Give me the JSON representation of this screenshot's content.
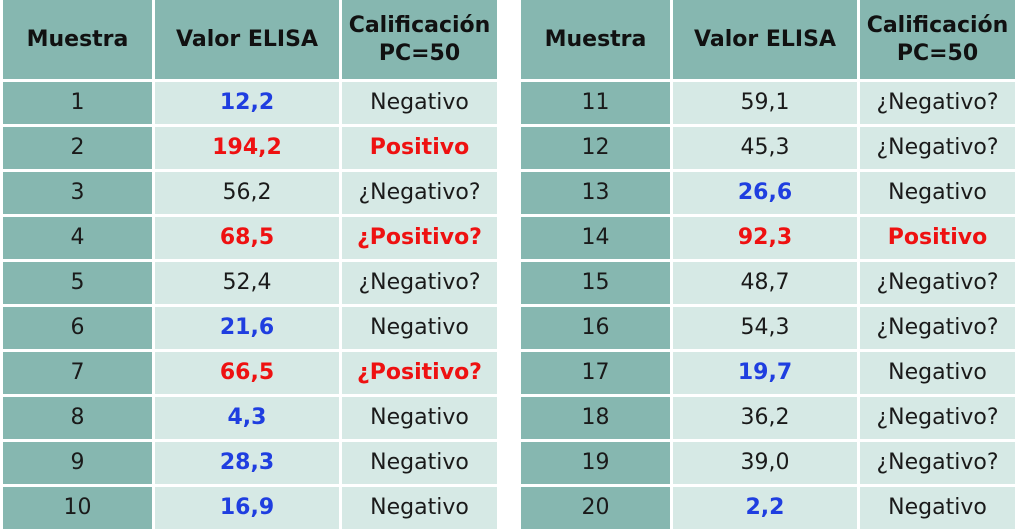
{
  "headers": {
    "sample": "Muestra",
    "value": "Valor ELISA",
    "rating_line1": "Calificación",
    "rating_line2": "PC=50"
  },
  "colors": {
    "header_bg": "#86b7b0",
    "cell_bg": "#d6e9e5",
    "negative_blue": "#1f3ee0",
    "positive_red": "#ee1111"
  },
  "left_rows": [
    {
      "sample": "1",
      "value": "12,2",
      "rating": "Negativo",
      "value_style": "neg",
      "rating_style": "plain"
    },
    {
      "sample": "2",
      "value": "194,2",
      "rating": "Positivo",
      "value_style": "pos",
      "rating_style": "pos"
    },
    {
      "sample": "3",
      "value": "56,2",
      "rating": "¿Negativo?",
      "value_style": "plain",
      "rating_style": "plain"
    },
    {
      "sample": "4",
      "value": "68,5",
      "rating": "¿Positivo?",
      "value_style": "pos",
      "rating_style": "pos"
    },
    {
      "sample": "5",
      "value": "52,4",
      "rating": "¿Negativo?",
      "value_style": "plain",
      "rating_style": "plain"
    },
    {
      "sample": "6",
      "value": "21,6",
      "rating": "Negativo",
      "value_style": "neg",
      "rating_style": "plain"
    },
    {
      "sample": "7",
      "value": "66,5",
      "rating": "¿Positivo?",
      "value_style": "pos",
      "rating_style": "pos"
    },
    {
      "sample": "8",
      "value": "4,3",
      "rating": "Negativo",
      "value_style": "neg",
      "rating_style": "plain"
    },
    {
      "sample": "9",
      "value": "28,3",
      "rating": "Negativo",
      "value_style": "neg",
      "rating_style": "plain"
    },
    {
      "sample": "10",
      "value": "16,9",
      "rating": "Negativo",
      "value_style": "neg",
      "rating_style": "plain"
    }
  ],
  "right_rows": [
    {
      "sample": "11",
      "value": "59,1",
      "rating": "¿Negativo?",
      "value_style": "plain",
      "rating_style": "plain"
    },
    {
      "sample": "12",
      "value": "45,3",
      "rating": "¿Negativo?",
      "value_style": "plain",
      "rating_style": "plain"
    },
    {
      "sample": "13",
      "value": "26,6",
      "rating": "Negativo",
      "value_style": "neg",
      "rating_style": "plain"
    },
    {
      "sample": "14",
      "value": "92,3",
      "rating": "Positivo",
      "value_style": "pos",
      "rating_style": "pos"
    },
    {
      "sample": "15",
      "value": "48,7",
      "rating": "¿Negativo?",
      "value_style": "plain",
      "rating_style": "plain"
    },
    {
      "sample": "16",
      "value": "54,3",
      "rating": "¿Negativo?",
      "value_style": "plain",
      "rating_style": "plain"
    },
    {
      "sample": "17",
      "value": "19,7",
      "rating": "Negativo",
      "value_style": "neg",
      "rating_style": "plain"
    },
    {
      "sample": "18",
      "value": "36,2",
      "rating": "¿Negativo?",
      "value_style": "plain",
      "rating_style": "plain"
    },
    {
      "sample": "19",
      "value": "39,0",
      "rating": "¿Negativo?",
      "value_style": "plain",
      "rating_style": "plain"
    },
    {
      "sample": "20",
      "value": "2,2",
      "rating": "Negativo",
      "value_style": "neg",
      "rating_style": "plain"
    }
  ]
}
